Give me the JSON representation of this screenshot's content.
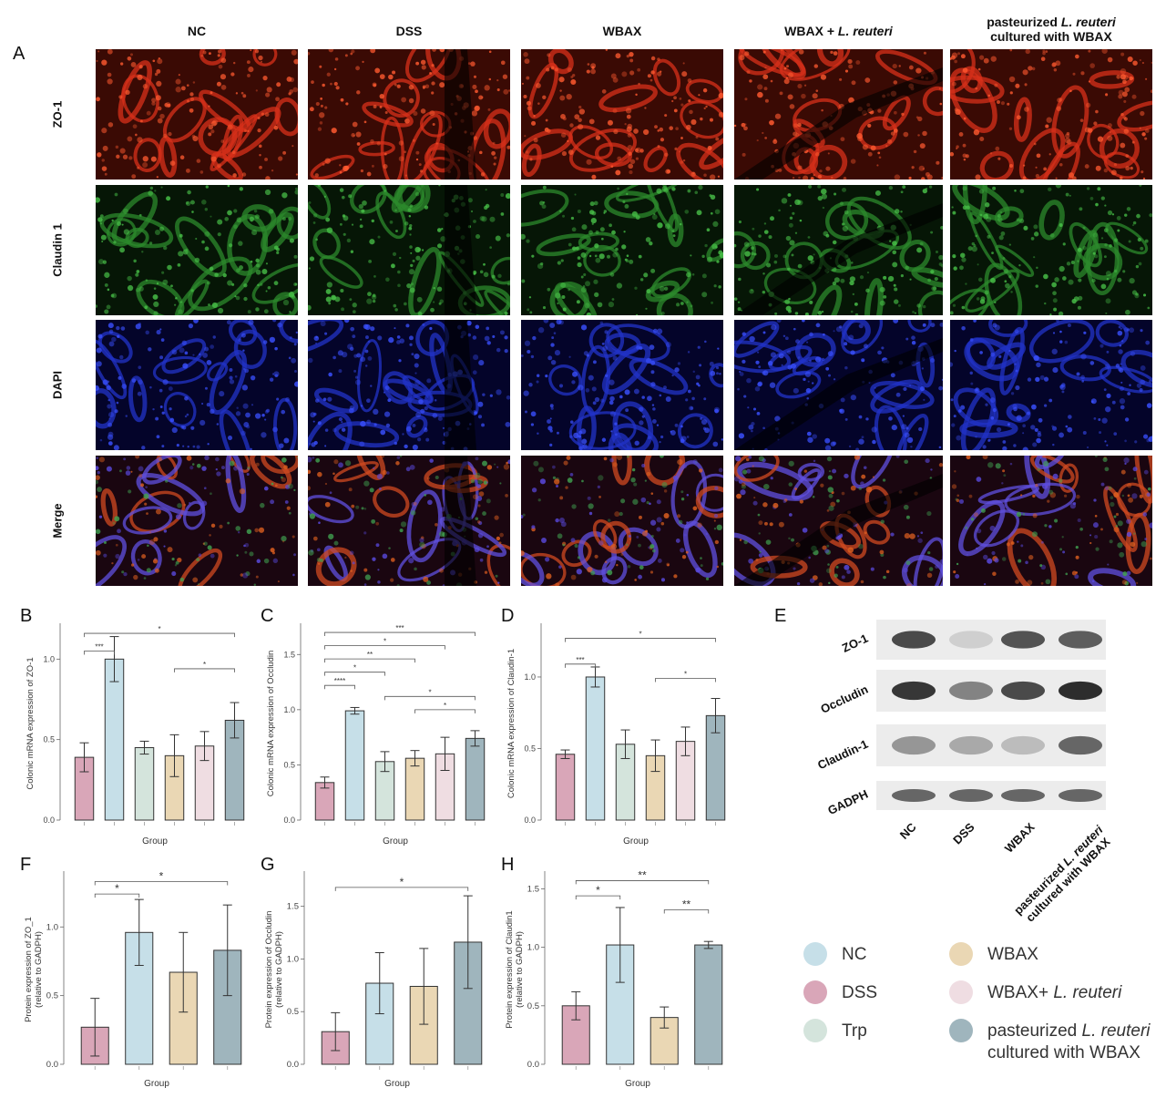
{
  "figure": {
    "panel_letters": [
      "A",
      "B",
      "C",
      "D",
      "E",
      "F",
      "G",
      "H"
    ],
    "columns": [
      "NC",
      "DSS",
      "WBAX",
      "WBAX + L. reuteri",
      "pasteurized L. reuteri cultured with WBAX"
    ],
    "column_parts": [
      {
        "main": "NC",
        "ital": "",
        "tail": ""
      },
      {
        "main": "DSS",
        "ital": "",
        "tail": ""
      },
      {
        "main": "WBAX",
        "ital": "",
        "tail": ""
      },
      {
        "main": "WBAX + ",
        "ital": "L. reuteri",
        "tail": ""
      },
      {
        "main": "pasteurized ",
        "ital": "L. reuteri",
        "tail": "cultured with WBAX"
      }
    ],
    "rows": [
      "ZO-1",
      "Claudin 1",
      "DAPI",
      "Merge"
    ],
    "colors": {
      "NC": "#c6dfe8",
      "DSS": "#d9a6b8",
      "Trp": "#d4e4dc",
      "WBAX": "#ead7b4",
      "WBAX_Lr": "#efdde2",
      "Past": "#9fb5bd"
    }
  },
  "western": {
    "proteins": [
      "ZO-1",
      "Occludin",
      "Claudin-1",
      "GADPH"
    ],
    "lanes": [
      "NC",
      "DSS",
      "WBAX"
    ],
    "lane4": {
      "main": "pasteurized ",
      "ital": "L. reuteri",
      "tail": "cultured with WBAX"
    },
    "intensity": [
      [
        0.85,
        0.15,
        0.8,
        0.75
      ],
      [
        0.95,
        0.55,
        0.85,
        1.0
      ],
      [
        0.45,
        0.35,
        0.25,
        0.7
      ],
      [
        0.7,
        0.7,
        0.7,
        0.7
      ]
    ]
  },
  "legend": [
    {
      "key": "NC",
      "label": "NC",
      "color": "#c6dfe8"
    },
    {
      "key": "DSS",
      "label": "DSS",
      "color": "#d9a6b8"
    },
    {
      "key": "Trp",
      "label": "Trp",
      "color": "#d4e4dc"
    },
    {
      "key": "WBAX",
      "label": "WBAX",
      "color": "#ead7b4"
    },
    {
      "key": "WBAX_Lr",
      "label": "WBAX+ ",
      "ital": "L. reuteri",
      "color": "#efdde2"
    },
    {
      "key": "Past",
      "label": "pasteurized ",
      "ital": "L. reuteri",
      "line2": "cultured with WBAX",
      "color": "#9fb5bd"
    }
  ],
  "chart_data": [
    {
      "id": "B",
      "type": "bar",
      "xlabel": "Group",
      "ylabel": "Colonic mRNA expression of ZO-1",
      "ylim": [
        0,
        1.2
      ],
      "yticks": [
        0.0,
        0.5,
        1.0
      ],
      "categories": [
        "DSS",
        "NC",
        "Trp",
        "WBAX",
        "WBAX+ L. reuteri",
        "pasteurized L. reuteri cultured with WBAX"
      ],
      "colors": [
        "#d9a6b8",
        "#c6dfe8",
        "#d4e4dc",
        "#ead7b4",
        "#efdde2",
        "#9fb5bd"
      ],
      "values": [
        0.39,
        1.0,
        0.45,
        0.4,
        0.46,
        0.62
      ],
      "errors": [
        0.09,
        0.14,
        0.04,
        0.13,
        0.09,
        0.11
      ],
      "sig": [
        {
          "a": 0,
          "b": 1,
          "label": "***",
          "level": 1.05
        },
        {
          "a": 0,
          "b": 5,
          "label": "*",
          "level": 1.16
        },
        {
          "a": 3,
          "b": 5,
          "label": "*",
          "level": 0.94
        }
      ]
    },
    {
      "id": "C",
      "type": "bar",
      "xlabel": "Group",
      "ylabel": "Colonic mRNA expression of Occludin",
      "ylim": [
        0,
        1.75
      ],
      "yticks": [
        0.0,
        0.5,
        1.0,
        1.5
      ],
      "categories": [
        "DSS",
        "NC",
        "Trp",
        "WBAX",
        "WBAX+ L. reuteri",
        "pasteurized L. reuteri cultured with WBAX"
      ],
      "colors": [
        "#d9a6b8",
        "#c6dfe8",
        "#d4e4dc",
        "#ead7b4",
        "#efdde2",
        "#9fb5bd"
      ],
      "values": [
        0.34,
        0.99,
        0.53,
        0.56,
        0.6,
        0.74
      ],
      "errors": [
        0.05,
        0.03,
        0.09,
        0.07,
        0.15,
        0.07
      ],
      "sig": [
        {
          "a": 0,
          "b": 1,
          "label": "****",
          "level": 1.22
        },
        {
          "a": 0,
          "b": 2,
          "label": "*",
          "level": 1.34
        },
        {
          "a": 0,
          "b": 3,
          "label": "**",
          "level": 1.46
        },
        {
          "a": 0,
          "b": 4,
          "label": "*",
          "level": 1.58
        },
        {
          "a": 0,
          "b": 5,
          "label": "***",
          "level": 1.7
        },
        {
          "a": 2,
          "b": 5,
          "label": "*",
          "level": 1.12
        },
        {
          "a": 3,
          "b": 5,
          "label": "*",
          "level": 1.0
        }
      ]
    },
    {
      "id": "D",
      "type": "bar",
      "xlabel": "Group",
      "ylabel": "Colonic mRNA expression of Claudin-1",
      "ylim": [
        0,
        1.35
      ],
      "yticks": [
        0.0,
        0.5,
        1.0
      ],
      "categories": [
        "DSS",
        "NC",
        "Trp",
        "WBAX",
        "WBAX+ L. reuteri",
        "pasteurized L. reuteri cultured with WBAX"
      ],
      "colors": [
        "#d9a6b8",
        "#c6dfe8",
        "#d4e4dc",
        "#ead7b4",
        "#efdde2",
        "#9fb5bd"
      ],
      "values": [
        0.46,
        1.0,
        0.53,
        0.45,
        0.55,
        0.73
      ],
      "errors": [
        0.03,
        0.07,
        0.1,
        0.11,
        0.1,
        0.12
      ],
      "sig": [
        {
          "a": 0,
          "b": 1,
          "label": "***",
          "level": 1.09
        },
        {
          "a": 0,
          "b": 5,
          "label": "*",
          "level": 1.27
        },
        {
          "a": 3,
          "b": 5,
          "label": "*",
          "level": 0.99
        }
      ]
    },
    {
      "id": "F",
      "type": "bar",
      "xlabel": "Group",
      "ylabel": "Protein expression of ZO_1 (relative to GADPH)",
      "ylim": [
        0,
        1.38
      ],
      "yticks": [
        0.0,
        0.5,
        1.0
      ],
      "categories": [
        "DSS",
        "NC",
        "WBAX",
        "pasteurized L. reuteri cultured with WBAX"
      ],
      "colors": [
        "#d9a6b8",
        "#c6dfe8",
        "#ead7b4",
        "#9fb5bd"
      ],
      "values": [
        0.27,
        0.96,
        0.67,
        0.83
      ],
      "errors": [
        0.21,
        0.24,
        0.29,
        0.33
      ],
      "sig": [
        {
          "a": 0,
          "b": 1,
          "label": "*",
          "level": 1.24
        },
        {
          "a": 0,
          "b": 3,
          "label": "*",
          "level": 1.33
        }
      ]
    },
    {
      "id": "G",
      "type": "bar",
      "xlabel": "Group",
      "ylabel": "Protein expression of Occludin (relative to GADPH)",
      "ylim": [
        0,
        1.8
      ],
      "yticks": [
        0.0,
        0.5,
        1.0,
        1.5
      ],
      "categories": [
        "DSS",
        "NC",
        "WBAX",
        "pasteurized L. reuteri cultured with WBAX"
      ],
      "colors": [
        "#d9a6b8",
        "#c6dfe8",
        "#ead7b4",
        "#9fb5bd"
      ],
      "values": [
        0.31,
        0.77,
        0.74,
        1.16
      ],
      "errors": [
        0.18,
        0.29,
        0.36,
        0.44
      ],
      "sig": [
        {
          "a": 0,
          "b": 3,
          "label": "*",
          "level": 1.68
        }
      ]
    },
    {
      "id": "H",
      "type": "bar",
      "xlabel": "Group",
      "ylabel": "Protein expression of Claudin1 (relative to GADPH)",
      "ylim": [
        0,
        1.62
      ],
      "yticks": [
        0.0,
        0.5,
        1.0,
        1.5
      ],
      "categories": [
        "DSS",
        "NC",
        "WBAX",
        "pasteurized L. reuteri cultured with WBAX"
      ],
      "colors": [
        "#d9a6b8",
        "#c6dfe8",
        "#ead7b4",
        "#9fb5bd"
      ],
      "values": [
        0.5,
        1.02,
        0.4,
        1.02
      ],
      "errors": [
        0.12,
        0.32,
        0.09,
        0.03
      ],
      "sig": [
        {
          "a": 0,
          "b": 1,
          "label": "*",
          "level": 1.44
        },
        {
          "a": 2,
          "b": 3,
          "label": "**",
          "level": 1.32
        },
        {
          "a": 0,
          "b": 3,
          "label": "**",
          "level": 1.57
        }
      ]
    }
  ]
}
